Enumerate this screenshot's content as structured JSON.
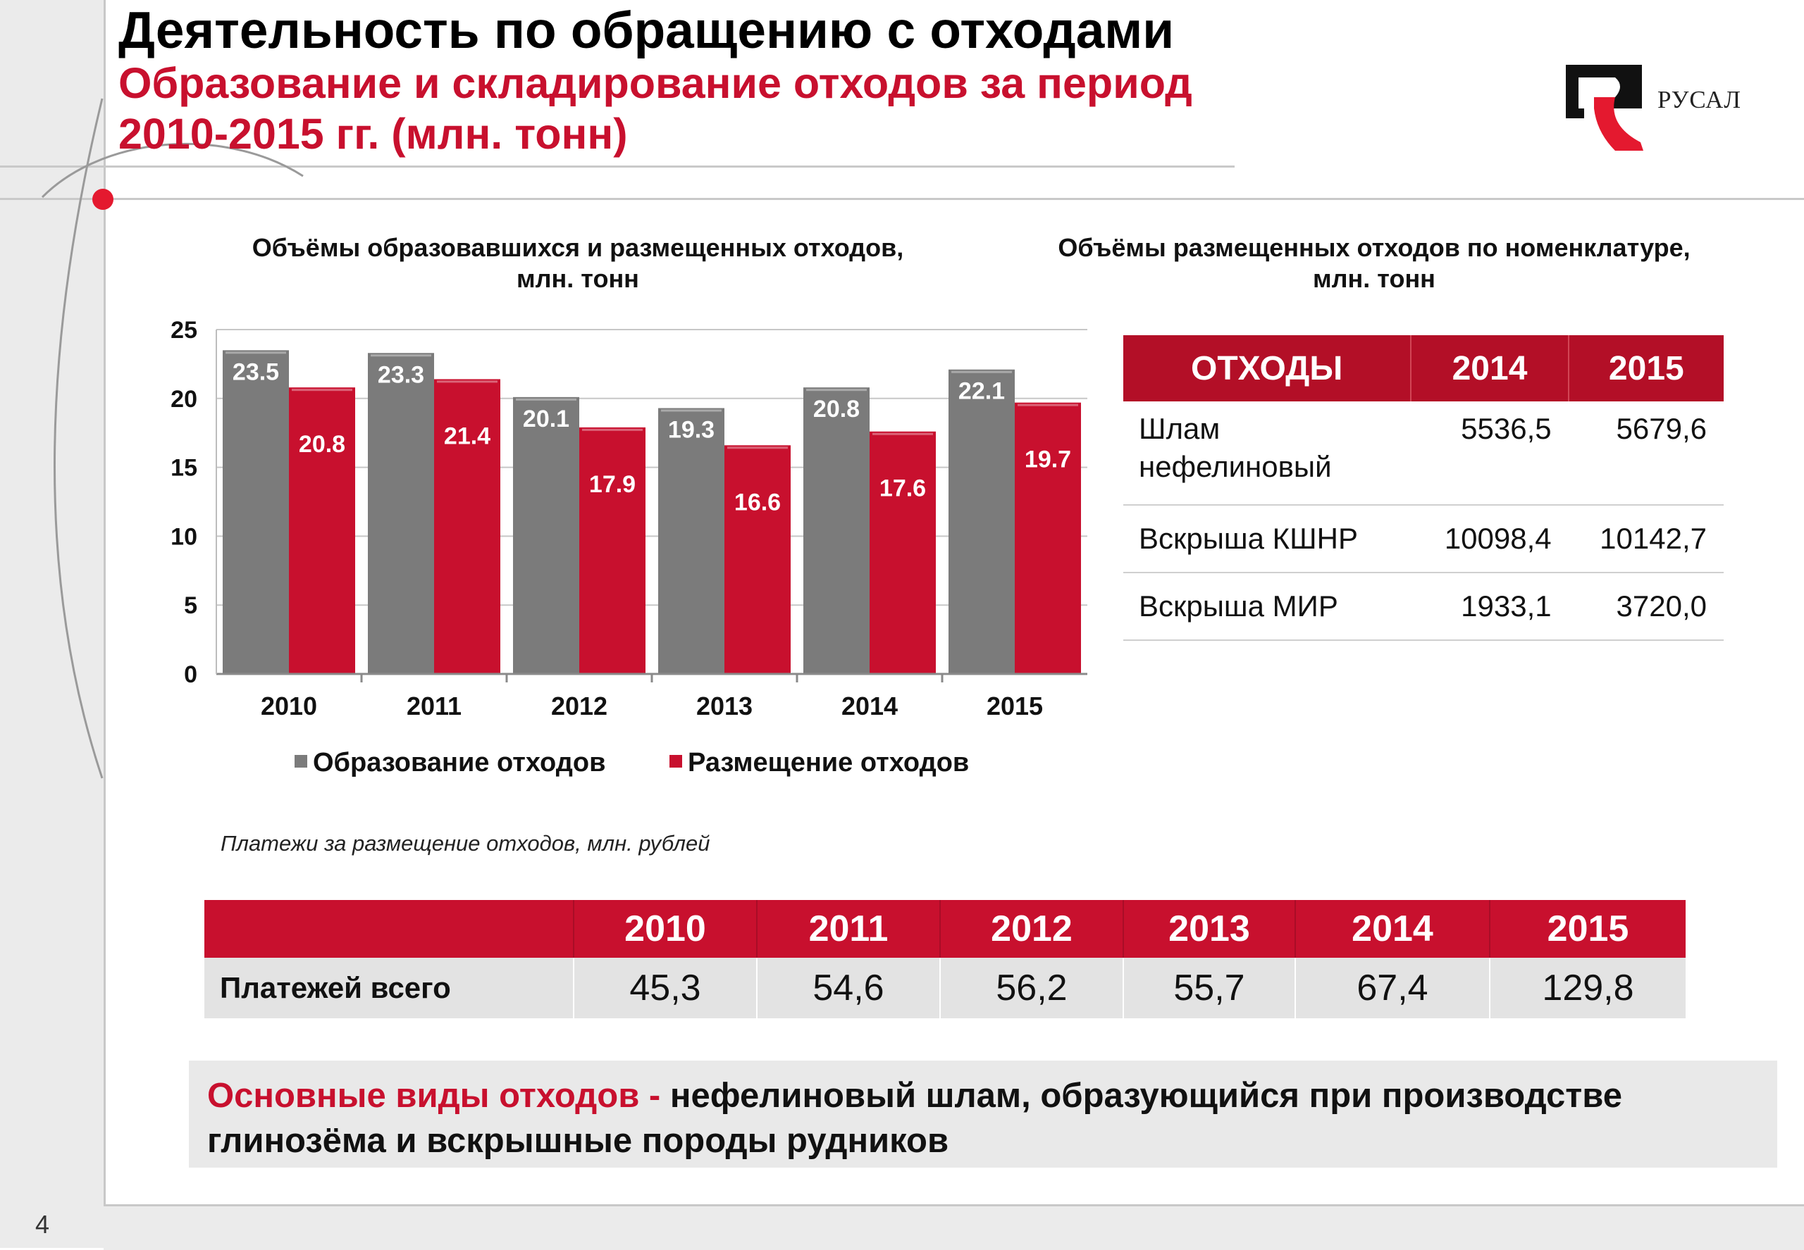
{
  "slide": {
    "title": "Деятельность по обращению с отходами",
    "subtitle_line1": "Образование и складирование отходов за период",
    "subtitle_line2": "2010-2015 гг. (млн. тонн)",
    "page_number": "4"
  },
  "logo": {
    "text": "РУСАЛ",
    "colors": {
      "black": "#111111",
      "red": "#e4192f"
    }
  },
  "colors": {
    "accent": "#c8102e",
    "gray_bar": "#7b7b7b",
    "red_bar": "#c8102e"
  },
  "chart_titles": {
    "left_line1": "Объёмы образовавшихся и размещенных отходов,",
    "left_line2": "млн. тонн",
    "right_line1": "Объёмы размещенных отходов по номенклатуре,",
    "right_line2": "млн. тонн"
  },
  "chart_data": {
    "type": "bar",
    "categories": [
      "2010",
      "2011",
      "2012",
      "2013",
      "2014",
      "2015"
    ],
    "series": [
      {
        "name": "Образование отходов",
        "values": [
          23.5,
          23.3,
          20.1,
          19.3,
          20.8,
          22.1
        ],
        "labels": [
          "23.5",
          "23.3",
          "20.1",
          "19.3",
          "20.8",
          "22.1"
        ],
        "color": "#7b7b7b"
      },
      {
        "name": "Размещение отходов",
        "values": [
          20.8,
          21.4,
          17.9,
          16.6,
          17.6,
          19.7
        ],
        "labels": [
          "20.8",
          "21.4",
          "17.9",
          "16.6",
          "17.6",
          "19.7"
        ],
        "color": "#c8102e"
      }
    ],
    "yticks": [
      "0",
      "5",
      "10",
      "15",
      "20",
      "25"
    ],
    "ylim": [
      0,
      25
    ],
    "grid": true,
    "legend_position": "bottom"
  },
  "waste_table": {
    "headers": [
      "ОТХОДЫ",
      "2014",
      "2015"
    ],
    "rows": [
      {
        "name_line1": "Шлам",
        "name_line2": "нефелиновый",
        "v2014": "5536,5",
        "v2015": "5679,6"
      },
      {
        "name": "Вскрыша КШНР",
        "v2014": "10098,4",
        "v2015": "10142,7"
      },
      {
        "name": "Вскрыша МИР",
        "v2014": "1933,1",
        "v2015": "3720,0"
      }
    ]
  },
  "payments": {
    "caption": "Платежи за размещение отходов, млн. рублей",
    "years": [
      "2010",
      "2011",
      "2012",
      "2013",
      "2014",
      "2015"
    ],
    "row_label": "Платежей всего",
    "values": [
      "45,3",
      "54,6",
      "56,2",
      "55,7",
      "67,4",
      "129,8"
    ]
  },
  "note": {
    "highlight": "Основные виды отходов -",
    "text": " нефелиновый шлам, образующийся при производстве глинозёма и вскрышные породы рудников"
  }
}
